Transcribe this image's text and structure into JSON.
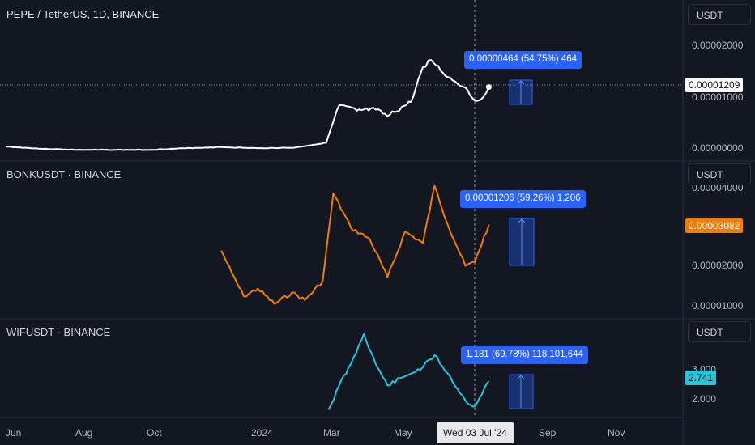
{
  "panes": [
    {
      "title": "PEPE / TetherUS, 1D, BINANCE",
      "unit": "USDT",
      "ticks": [
        "0.00002000",
        "0.00001000",
        "0.00000000"
      ],
      "last_price": "0.00001209",
      "measure": "0.00000464 (54.75%) 464",
      "color": "#ffffff"
    },
    {
      "title": "BONKUSDT · BINANCE",
      "unit": "USDT",
      "ticks": [
        "0.00004000",
        "0.00002000",
        "0.00001000"
      ],
      "last_price": "0.00003082",
      "measure": "0.00001206 (59.26%) 1,206",
      "color": "#f57c00"
    },
    {
      "title": "WIFUSDT · BINANCE",
      "unit": "USDT",
      "ticks": [
        "3.000",
        "2.000"
      ],
      "last_price": "2.741",
      "measure": "1.181 (69.78%) 118,101,644",
      "color": "#26c6da"
    }
  ],
  "time_axis": {
    "labels": [
      "Jun",
      "Aug",
      "Oct",
      "2024",
      "Mar",
      "May",
      "Sep",
      "Nov"
    ],
    "cursor_label": "Wed 03 Jul '24"
  },
  "chart_data": [
    {
      "type": "line",
      "title": "PEPE / TetherUS, 1D, BINANCE",
      "ylabel": "USDT",
      "x": [
        "2023-06",
        "2023-07",
        "2023-08",
        "2023-09",
        "2023-10",
        "2023-11",
        "2023-12",
        "2024-01",
        "2024-02",
        "2024-02-28",
        "2024-03-10",
        "2024-03-25",
        "2024-04-10",
        "2024-04-20",
        "2024-05-10",
        "2024-05-20",
        "2024-05-27",
        "2024-06-10",
        "2024-06-25",
        "2024-07-03",
        "2024-07-08",
        "2024-07-15"
      ],
      "values": [
        1.3e-06,
        9e-07,
        7e-07,
        7e-07,
        7e-07,
        1e-06,
        1.2e-06,
        1e-06,
        1.1e-06,
        2e-06,
        8.8e-06,
        7.8e-06,
        8e-06,
        6.8e-06,
        9.4e-06,
        1.57e-05,
        1.7e-05,
        1.39e-05,
        1.2e-05,
        9.6e-06,
        9.8e-06,
        1.209e-05
      ],
      "ylim": [
        0,
        2.2e-05
      ]
    },
    {
      "type": "line",
      "title": "BONKUSDT · BINANCE",
      "ylabel": "USDT",
      "x": [
        "2023-12-01",
        "2023-12-10",
        "2023-12-20",
        "2024-01-01",
        "2024-01-15",
        "2024-01-30",
        "2024-02-10",
        "2024-02-25",
        "2024-03-05",
        "2024-03-20",
        "2024-04-05",
        "2024-04-20",
        "2024-05-05",
        "2024-05-20",
        "2024-05-30",
        "2024-06-10",
        "2024-06-25",
        "2024-07-03",
        "2024-07-15"
      ],
      "values": [
        2.4e-05,
        1.8e-05,
        1.2e-05,
        1.4e-05,
        1e-05,
        1.3e-05,
        1.1e-05,
        1.6e-05,
        3.9e-05,
        3e-05,
        2.7e-05,
        1.7e-05,
        2.9e-05,
        2.6e-05,
        4.1e-05,
        3.1e-05,
        2e-05,
        2.1e-05,
        3.082e-05
      ],
      "ylim": [
        8e-06,
        4.2e-05
      ]
    },
    {
      "type": "line",
      "title": "WIFUSDT · BINANCE",
      "ylabel": "USDT",
      "x": [
        "2024-03-01",
        "2024-03-10",
        "2024-03-20",
        "2024-03-31",
        "2024-04-10",
        "2024-04-20",
        "2024-05-05",
        "2024-05-20",
        "2024-05-30",
        "2024-06-10",
        "2024-06-25",
        "2024-07-03",
        "2024-07-15"
      ],
      "values": [
        1.8,
        2.6,
        3.3,
        4.3,
        3.3,
        2.6,
        2.9,
        3.2,
        3.6,
        3.0,
        2.1,
        1.9,
        2.741
      ],
      "ylim": [
        1.7,
        4.5
      ]
    }
  ]
}
